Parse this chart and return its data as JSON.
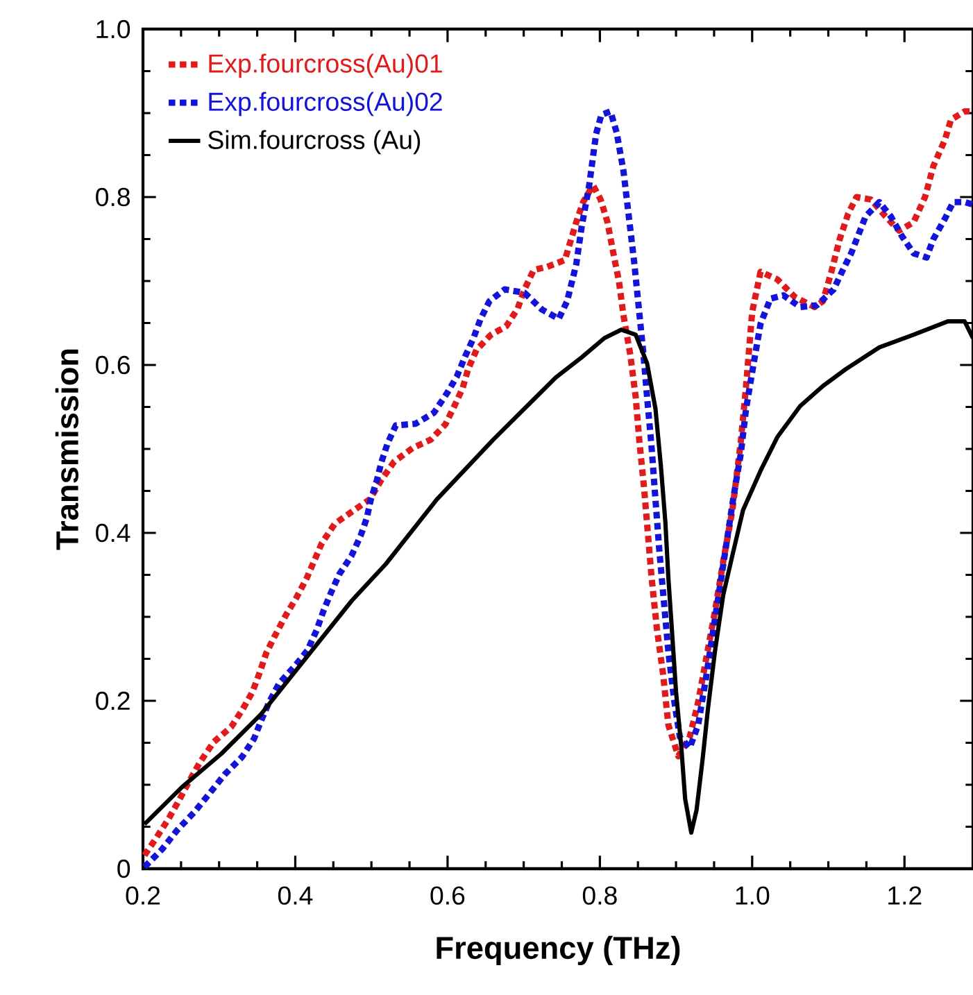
{
  "chart_data": {
    "type": "line",
    "xlabel": "Frequency (THz)",
    "ylabel": "Transmission",
    "xlim": [
      0.2,
      1.29
    ],
    "ylim": [
      0,
      1
    ],
    "xticks": [
      0.2,
      0.4,
      0.6,
      0.8,
      {
        "value": 1.0,
        "label": "1.0"
      },
      1.2
    ],
    "yticks": [
      0,
      0.2,
      0.4,
      0.6,
      0.8,
      {
        "value": 1.0,
        "label": "1.0"
      }
    ],
    "grid": false,
    "legend": "top left",
    "marker": "none",
    "series": [
      {
        "name": "Exp.fourcross(Au)01",
        "color": "#e01b1b",
        "line_style": "dotted",
        "x": [
          0.202,
          0.217,
          0.234,
          0.247,
          0.26,
          0.275,
          0.293,
          0.316,
          0.331,
          0.344,
          0.353,
          0.362,
          0.373,
          0.387,
          0.401,
          0.415,
          0.425,
          0.435,
          0.452,
          0.474,
          0.498,
          0.513,
          0.53,
          0.554,
          0.578,
          0.597,
          0.61,
          0.62,
          0.627,
          0.638,
          0.657,
          0.677,
          0.692,
          0.701,
          0.713,
          0.731,
          0.754,
          0.769,
          0.778,
          0.791,
          0.801,
          0.81,
          0.819,
          0.825,
          0.831,
          0.84,
          0.847,
          0.852,
          0.858,
          0.863,
          0.868,
          0.875,
          0.883,
          0.89,
          0.903,
          0.918,
          0.929,
          0.94,
          0.951,
          0.962,
          0.974,
          0.985,
          0.992,
          1.0,
          1.011,
          1.033,
          1.056,
          1.082,
          1.093,
          1.104,
          1.115,
          1.126,
          1.137,
          1.156,
          1.175,
          1.193,
          1.212,
          1.227,
          1.238,
          1.253,
          1.261,
          1.279,
          1.29
        ],
        "values": [
          0.016,
          0.036,
          0.06,
          0.081,
          0.103,
          0.127,
          0.151,
          0.169,
          0.19,
          0.211,
          0.233,
          0.257,
          0.277,
          0.301,
          0.322,
          0.346,
          0.367,
          0.388,
          0.411,
          0.425,
          0.44,
          0.463,
          0.485,
          0.501,
          0.511,
          0.529,
          0.553,
          0.573,
          0.595,
          0.618,
          0.636,
          0.646,
          0.667,
          0.69,
          0.713,
          0.717,
          0.725,
          0.77,
          0.794,
          0.814,
          0.797,
          0.77,
          0.727,
          0.7,
          0.659,
          0.612,
          0.562,
          0.508,
          0.454,
          0.4,
          0.346,
          0.285,
          0.232,
          0.171,
          0.134,
          0.157,
          0.198,
          0.252,
          0.306,
          0.366,
          0.427,
          0.508,
          0.575,
          0.663,
          0.711,
          0.702,
          0.681,
          0.669,
          0.676,
          0.711,
          0.75,
          0.78,
          0.8,
          0.797,
          0.777,
          0.76,
          0.77,
          0.8,
          0.837,
          0.868,
          0.892,
          0.902,
          0.902
        ]
      },
      {
        "name": "Exp.fourcross(Au)02",
        "color": "#1414d8",
        "line_style": "dotted",
        "x": [
          0.202,
          0.225,
          0.245,
          0.267,
          0.286,
          0.307,
          0.33,
          0.346,
          0.355,
          0.366,
          0.379,
          0.4,
          0.416,
          0.428,
          0.437,
          0.447,
          0.458,
          0.474,
          0.486,
          0.494,
          0.499,
          0.507,
          0.513,
          0.521,
          0.532,
          0.558,
          0.582,
          0.599,
          0.612,
          0.623,
          0.634,
          0.643,
          0.655,
          0.675,
          0.701,
          0.724,
          0.746,
          0.757,
          0.769,
          0.776,
          0.786,
          0.795,
          0.802,
          0.814,
          0.822,
          0.831,
          0.838,
          0.845,
          0.851,
          0.857,
          0.862,
          0.868,
          0.873,
          0.878,
          0.884,
          0.89,
          0.898,
          0.905,
          0.918,
          0.929,
          0.939,
          0.948,
          0.957,
          0.966,
          0.975,
          0.985,
          0.992,
          1.002,
          1.011,
          1.024,
          1.041,
          1.063,
          1.085,
          1.107,
          1.119,
          1.13,
          1.149,
          1.167,
          1.182,
          1.197,
          1.212,
          1.229,
          1.238,
          1.253,
          1.264,
          1.279,
          1.29
        ],
        "values": [
          0.002,
          0.023,
          0.046,
          0.067,
          0.088,
          0.112,
          0.133,
          0.155,
          0.176,
          0.199,
          0.221,
          0.242,
          0.26,
          0.284,
          0.307,
          0.329,
          0.351,
          0.373,
          0.397,
          0.418,
          0.439,
          0.462,
          0.484,
          0.506,
          0.528,
          0.53,
          0.543,
          0.566,
          0.586,
          0.61,
          0.632,
          0.654,
          0.676,
          0.69,
          0.686,
          0.666,
          0.655,
          0.676,
          0.72,
          0.764,
          0.814,
          0.875,
          0.898,
          0.902,
          0.877,
          0.831,
          0.777,
          0.723,
          0.669,
          0.615,
          0.562,
          0.501,
          0.44,
          0.38,
          0.319,
          0.258,
          0.198,
          0.157,
          0.144,
          0.171,
          0.225,
          0.279,
          0.332,
          0.386,
          0.44,
          0.494,
          0.548,
          0.602,
          0.649,
          0.679,
          0.683,
          0.669,
          0.671,
          0.69,
          0.713,
          0.733,
          0.777,
          0.794,
          0.777,
          0.753,
          0.733,
          0.728,
          0.75,
          0.774,
          0.794,
          0.794,
          0.791
        ]
      },
      {
        "name": "Sim.fourcross (Au)",
        "color": "#000000",
        "line_style": "solid",
        "x": [
          0.202,
          0.251,
          0.303,
          0.355,
          0.4,
          0.474,
          0.519,
          0.586,
          0.66,
          0.742,
          0.776,
          0.806,
          0.828,
          0.847,
          0.862,
          0.873,
          0.88,
          0.886,
          0.89,
          0.895,
          0.9,
          0.907,
          0.912,
          0.92,
          0.927,
          0.935,
          0.942,
          0.951,
          0.962,
          0.974,
          0.988,
          1.011,
          1.033,
          1.063,
          1.093,
          1.123,
          1.167,
          1.212,
          1.257,
          1.279,
          1.29
        ],
        "values": [
          0.053,
          0.097,
          0.137,
          0.184,
          0.235,
          0.319,
          0.363,
          0.44,
          0.511,
          0.585,
          0.609,
          0.632,
          0.642,
          0.636,
          0.602,
          0.548,
          0.481,
          0.413,
          0.346,
          0.279,
          0.211,
          0.144,
          0.083,
          0.043,
          0.07,
          0.131,
          0.191,
          0.258,
          0.326,
          0.373,
          0.427,
          0.474,
          0.514,
          0.551,
          0.575,
          0.595,
          0.621,
          0.636,
          0.652,
          0.652,
          0.632
        ]
      }
    ]
  }
}
